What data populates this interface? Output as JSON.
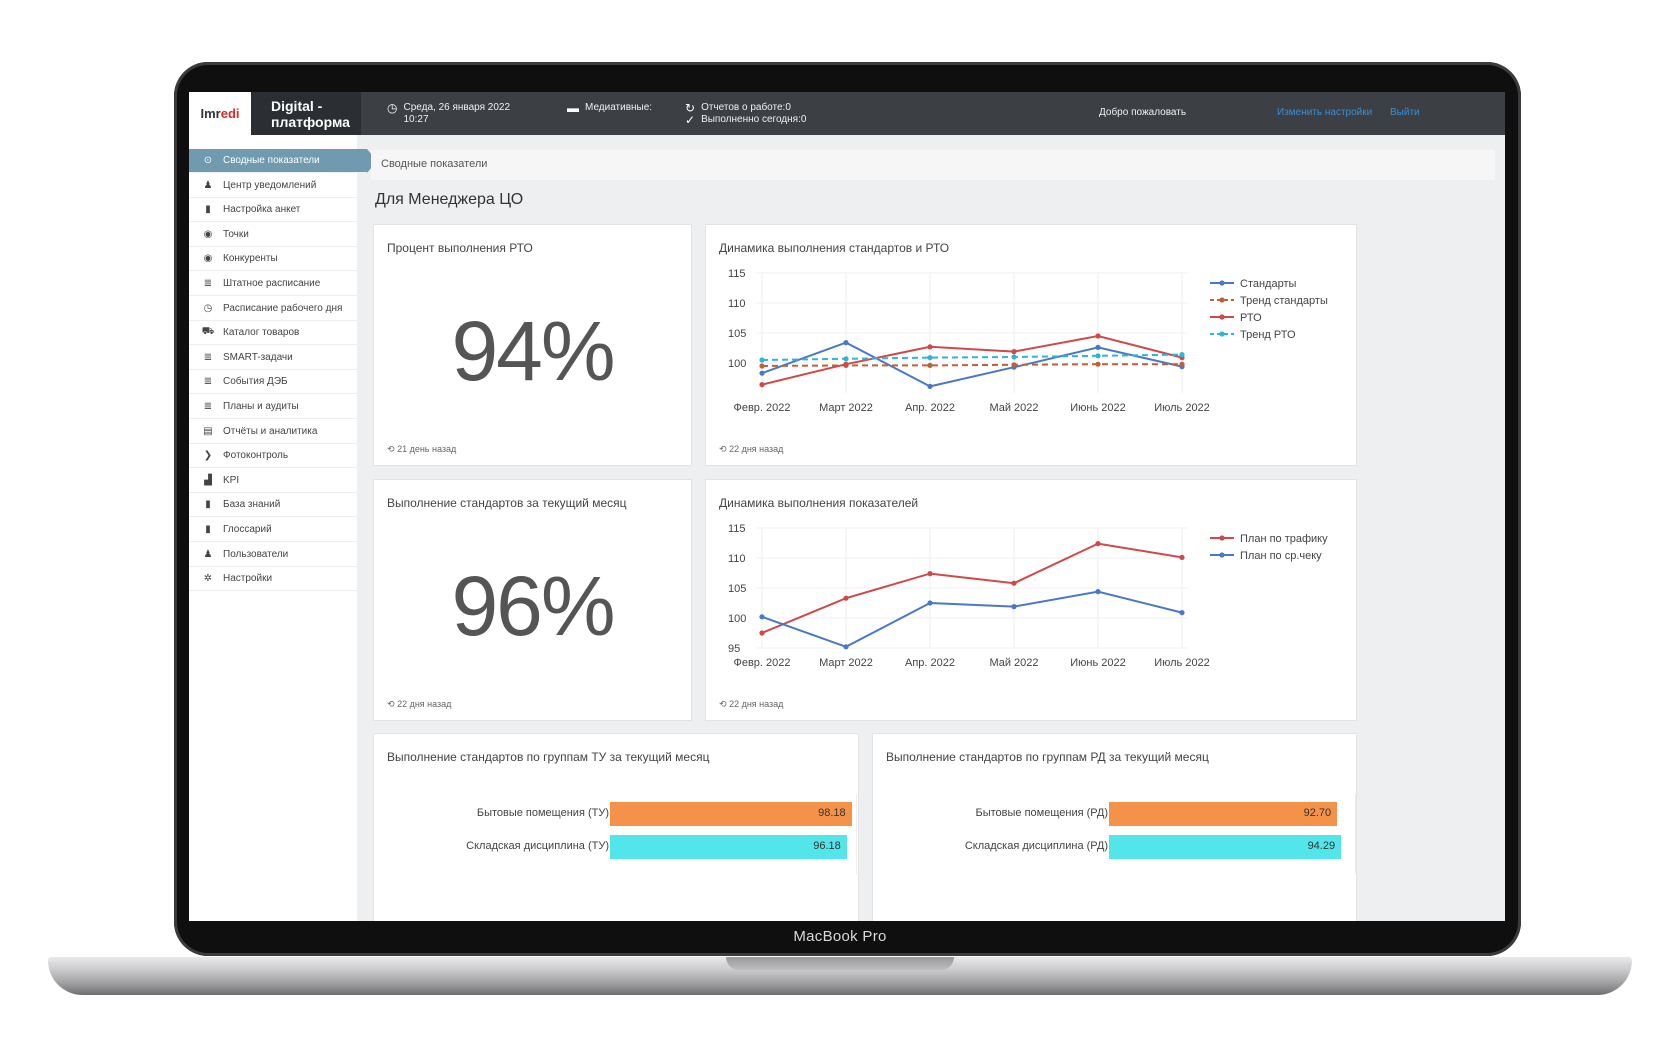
{
  "device": {
    "label": "MacBook Pro"
  },
  "topbar": {
    "logo_main": "Imr",
    "logo_accent": "edi",
    "brand_line1": "Digital -",
    "brand_line2": "платформа",
    "date_line1": "Среда, 26 января 2022",
    "date_line2": "10:27",
    "media_label": "Медиативные:",
    "reports_line1": "Отчетов о работе:0",
    "reports_line2": "Выполненно сегодня:0",
    "welcome": "Добро пожаловать",
    "settings_link": "Изменить настройки",
    "logout_link": "Выйти"
  },
  "sidebar": {
    "items": [
      {
        "label": "Сводные показатели",
        "icon": "dashboard-icon",
        "glyph": "⊙",
        "active": true
      },
      {
        "label": "Центр уведомлений",
        "icon": "bell-icon",
        "glyph": "♟"
      },
      {
        "label": "Настройка анкет",
        "icon": "file-icon",
        "glyph": "▮"
      },
      {
        "label": "Точки",
        "icon": "globe-icon",
        "glyph": "◉"
      },
      {
        "label": "Конкуренты",
        "icon": "globe-icon",
        "glyph": "◉"
      },
      {
        "label": "Штатное расписание",
        "icon": "list-icon",
        "glyph": "≣"
      },
      {
        "label": "Расписание рабочего дня",
        "icon": "clock-icon",
        "glyph": "◷"
      },
      {
        "label": "Каталог товаров",
        "icon": "cart-icon",
        "glyph": "⛟"
      },
      {
        "label": "SMART-задачи",
        "icon": "list-icon",
        "glyph": "≣"
      },
      {
        "label": "События ДЭБ",
        "icon": "list-icon",
        "glyph": "≣"
      },
      {
        "label": "Планы и аудиты",
        "icon": "list-icon",
        "glyph": "≣"
      },
      {
        "label": "Отчёты и аналитика",
        "icon": "table-icon",
        "glyph": "▤"
      },
      {
        "label": "Фотоконтроль",
        "icon": "chevron-right-icon",
        "glyph": "❯"
      },
      {
        "label": "KPI",
        "icon": "bar-chart-icon",
        "glyph": "▟"
      },
      {
        "label": "База знаний",
        "icon": "book-icon",
        "glyph": "▮"
      },
      {
        "label": "Глоссарий",
        "icon": "book-icon",
        "glyph": "▮"
      },
      {
        "label": "Пользователи",
        "icon": "user-icon",
        "glyph": "♟"
      },
      {
        "label": "Настройки",
        "icon": "gear-icon",
        "glyph": "✲"
      }
    ]
  },
  "main": {
    "breadcrumb": "Сводные показатели",
    "page_title": "Для Менеджера ЦО",
    "card_rto": {
      "title": "Процент выполнения РТО",
      "value": "94%",
      "footer": "21 день назад"
    },
    "card_std": {
      "title": "Выполнение стандартов за текущий месяц",
      "value": "96%",
      "footer": "22 дня назад"
    },
    "card_dyn1": {
      "title": "Динамика выполнения стандартов и РТО",
      "footer": "22 дня назад"
    },
    "card_dyn2": {
      "title": "Динамика выполнения показателей",
      "footer": "22 дня назад"
    },
    "card_tu": {
      "title": "Выполнение стандартов по группам ТУ за текущий месяц"
    },
    "card_rd": {
      "title": "Выполнение стандартов по группам РД за текущий месяц"
    }
  },
  "colors": {
    "blue": "#4a78c8",
    "red": "#d04848",
    "orange_dashed": "#c0603a",
    "cyan_dashed": "#2ab7d8",
    "bar_orange": "#f5924a",
    "bar_cyan": "#52e5ea"
  },
  "chart_data": [
    {
      "type": "line",
      "title": "Динамика выполнения стандартов и РТО",
      "categories": [
        "Февр. 2022",
        "Март 2022",
        "Апр. 2022",
        "Май 2022",
        "Июнь 2022",
        "Июль 2022"
      ],
      "ylim": [
        95,
        115
      ],
      "yticks": [
        100,
        105,
        110,
        115
      ],
      "legend_position": "right",
      "series": [
        {
          "name": "Стандарты",
          "color": "#4a78c8",
          "dashed": false,
          "values": [
            98.3,
            103.4,
            96.1,
            99.3,
            102.6,
            99.4
          ]
        },
        {
          "name": "Тренд стандарты",
          "color": "#c0603a",
          "dashed": true,
          "values": [
            99.5,
            99.6,
            99.6,
            99.7,
            99.8,
            99.8
          ]
        },
        {
          "name": "РТО",
          "color": "#d04848",
          "dashed": false,
          "values": [
            96.4,
            99.8,
            102.7,
            101.9,
            104.5,
            100.9
          ]
        },
        {
          "name": "Тренд РТО",
          "color": "#2ab7d8",
          "dashed": true,
          "values": [
            100.5,
            100.7,
            100.9,
            101.0,
            101.2,
            101.4
          ]
        }
      ]
    },
    {
      "type": "line",
      "title": "Динамика выполнения показателей",
      "categories": [
        "Февр. 2022",
        "Март 2022",
        "Апр. 2022",
        "Май 2022",
        "Июнь 2022",
        "Июль 2022"
      ],
      "ylim": [
        95,
        115
      ],
      "yticks": [
        95,
        100,
        105,
        110,
        115
      ],
      "legend_position": "right",
      "series": [
        {
          "name": "План по трафику",
          "color": "#d04848",
          "dashed": false,
          "values": [
            97.5,
            103.3,
            107.4,
            105.8,
            112.4,
            110.1
          ]
        },
        {
          "name": "План по ср.чеку",
          "color": "#4a78c8",
          "dashed": false,
          "values": [
            100.2,
            95.2,
            102.5,
            101.9,
            104.4,
            100.9
          ]
        }
      ]
    },
    {
      "type": "bar",
      "orientation": "horizontal",
      "title": "Выполнение стандартов по группам ТУ за текущий месяц",
      "categories": [
        "Бытовые помещения (ТУ)",
        "Складская дисциплина (ТУ)"
      ],
      "values": [
        98.18,
        96.18
      ],
      "value_labels": [
        "98.18",
        "96.18"
      ],
      "colors": [
        "#f5924a",
        "#52e5ea"
      ],
      "xlim": [
        0,
        130
      ]
    },
    {
      "type": "bar",
      "orientation": "horizontal",
      "title": "Выполнение стандартов по группам РД за текущий месяц",
      "categories": [
        "Бытовые помещения (РД)",
        "Складская дисциплина (РД)"
      ],
      "values": [
        92.7,
        94.29
      ],
      "value_labels": [
        "92.70",
        "94.29"
      ],
      "colors": [
        "#f5924a",
        "#52e5ea"
      ],
      "xlim": [
        0,
        130
      ]
    }
  ]
}
